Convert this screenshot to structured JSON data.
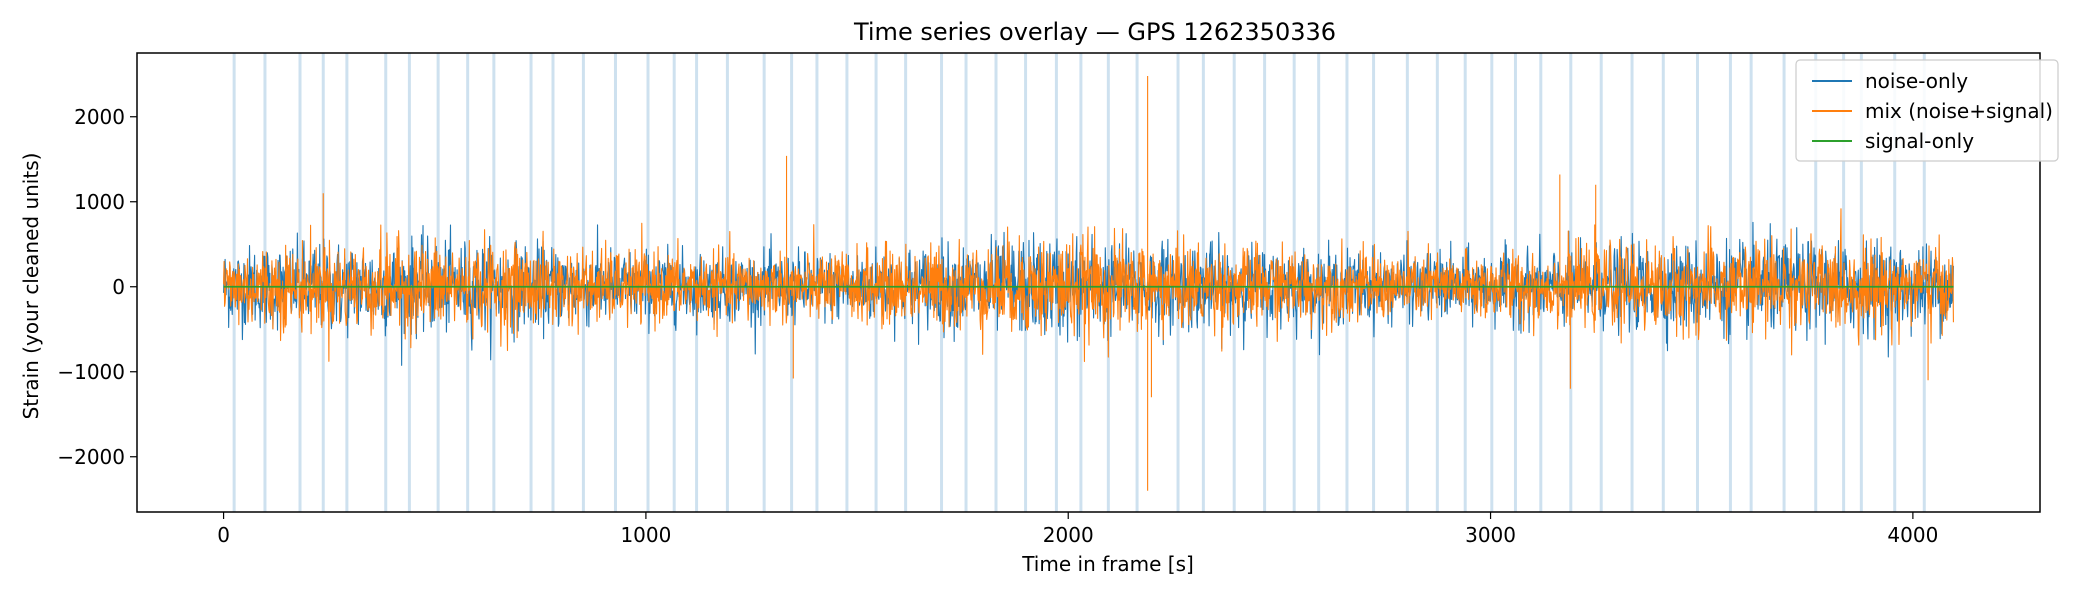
{
  "chart_data": {
    "type": "line",
    "title": "Time series overlay — GPS 1262350336",
    "xlabel": "Time in frame [s]",
    "ylabel": "Strain (your cleaned units)",
    "xlim": [
      -205,
      4301
    ],
    "ylim": [
      -2650,
      2750
    ],
    "xticks": [
      0,
      1000,
      2000,
      3000,
      4000
    ],
    "yticks": [
      -2000,
      -1000,
      0,
      1000,
      2000
    ],
    "grid": false,
    "legend_position": "top-right",
    "legend": [
      "noise-only",
      "mix (noise+signal)",
      "signal-only"
    ],
    "series": [
      {
        "name": "noise-only",
        "color": "#1f77b4",
        "style": "noise",
        "amplitude": 420,
        "t_start": 0,
        "t_end": 4096
      },
      {
        "name": "mix (noise+signal)",
        "color": "#ff7f0e",
        "style": "noise",
        "amplitude": 420,
        "t_start": 0,
        "t_end": 4096,
        "spikes": [
          {
            "t": 2188,
            "value": 2480
          },
          {
            "t": 2188,
            "value": -2400
          },
          {
            "t": 1333,
            "value": 1540
          },
          {
            "t": 3164,
            "value": 1320
          },
          {
            "t": 3249,
            "value": 1200
          },
          {
            "t": 236,
            "value": 1100
          },
          {
            "t": 1349,
            "value": -1080
          },
          {
            "t": 3189,
            "value": -1200
          },
          {
            "t": 4036,
            "value": -1100
          },
          {
            "t": 2197,
            "value": -1300
          }
        ]
      },
      {
        "name": "signal-only",
        "color": "#2ca02c",
        "style": "flat",
        "value": 0,
        "t_start": 0,
        "t_end": 4096
      }
    ],
    "segment_markers": {
      "color": "#a6c8e2",
      "positions": [
        25,
        98,
        181,
        236,
        292,
        384,
        440,
        508,
        578,
        640,
        728,
        780,
        852,
        928,
        1005,
        1067,
        1120,
        1193,
        1280,
        1345,
        1405,
        1476,
        1545,
        1615,
        1700,
        1758,
        1829,
        1899,
        1972,
        2030,
        2095,
        2163,
        2260,
        2320,
        2393,
        2465,
        2535,
        2593,
        2660,
        2723,
        2803,
        2874,
        2940,
        3003,
        3059,
        3119,
        3190,
        3262,
        3335,
        3409,
        3490,
        3568,
        3617,
        3695,
        3770,
        3836,
        3878,
        3957,
        4027
      ]
    }
  }
}
